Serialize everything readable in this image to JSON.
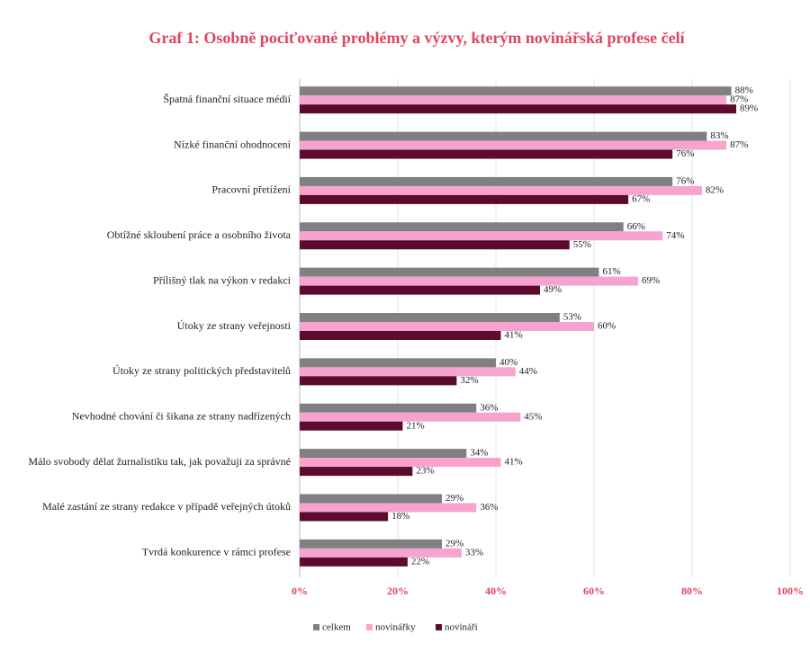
{
  "chart_data": {
    "type": "bar",
    "orientation": "horizontal",
    "title": "Graf 1: Osobně pociťované problémy a výzvy, kterým novinářská profese čelí",
    "categories": [
      "Špatná finanční situace médií",
      "Nízké finanční ohodnocení",
      "Pracovní přetížení",
      "Obtížné skloubení práce a osobního života",
      "Přílišný tlak na výkon v redakci",
      "Útoky ze strany veřejnosti",
      "Útoky ze strany politických představitelů",
      "Nevhodné chování či šikana ze strany nadřízených",
      "Málo svobody dělat žurnalistiku tak, jak považuji za správné",
      "Malé zastání ze strany redakce v případě veřejných útoků",
      "Tvrdá konkurence v rámci profese"
    ],
    "series": [
      {
        "name": "celkem",
        "color": "#808080",
        "values": [
          88,
          83,
          76,
          66,
          61,
          53,
          40,
          36,
          34,
          29,
          29
        ],
        "value_labels": [
          "88%",
          "83%",
          "76%",
          "66%",
          "61%",
          "53%",
          "40%",
          "36%",
          "34%",
          "29%",
          "29%"
        ]
      },
      {
        "name": "novinářky",
        "color": "#f7a3d0",
        "values": [
          87,
          87,
          82,
          74,
          69,
          60,
          44,
          45,
          41,
          36,
          33
        ],
        "value_labels": [
          "87%",
          "87%",
          "82%",
          "74%",
          "69%",
          "60%",
          "44%",
          "45%",
          "41%",
          "36%",
          "33%"
        ]
      },
      {
        "name": "novináři",
        "color": "#5c0a2e",
        "values": [
          89,
          76,
          67,
          55,
          49,
          41,
          32,
          21,
          23,
          18,
          22
        ],
        "value_labels": [
          "89%",
          "76%",
          "67%",
          "55%",
          "49%",
          "41%",
          "32%",
          "21%",
          "23%",
          "18%",
          "22%"
        ]
      }
    ],
    "xlim": [
      0,
      100
    ],
    "xticks": [
      {
        "value": 0,
        "label": "0%"
      },
      {
        "value": 20,
        "label": "20%"
      },
      {
        "value": 40,
        "label": "40%"
      },
      {
        "value": 60,
        "label": "60%"
      },
      {
        "value": 80,
        "label": "80%"
      },
      {
        "value": 100,
        "label": "100%"
      }
    ],
    "grid": true,
    "legend": "bottom"
  }
}
